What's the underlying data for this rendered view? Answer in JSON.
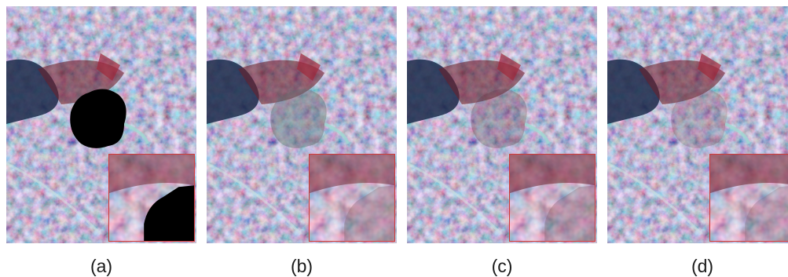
{
  "panels": [
    {
      "label": "(a)",
      "has_mask": true
    },
    {
      "label": "(b)",
      "has_mask": false
    },
    {
      "label": "(c)",
      "has_mask": false
    },
    {
      "label": "(d)",
      "has_mask": false
    }
  ],
  "colors": {
    "inset_border": "#d23a3a",
    "vegetation_red": "#8a2a3a",
    "terrain_cyan": "#7fb8b4",
    "water_dark": "#1b2a4a",
    "mask": "#000000"
  }
}
